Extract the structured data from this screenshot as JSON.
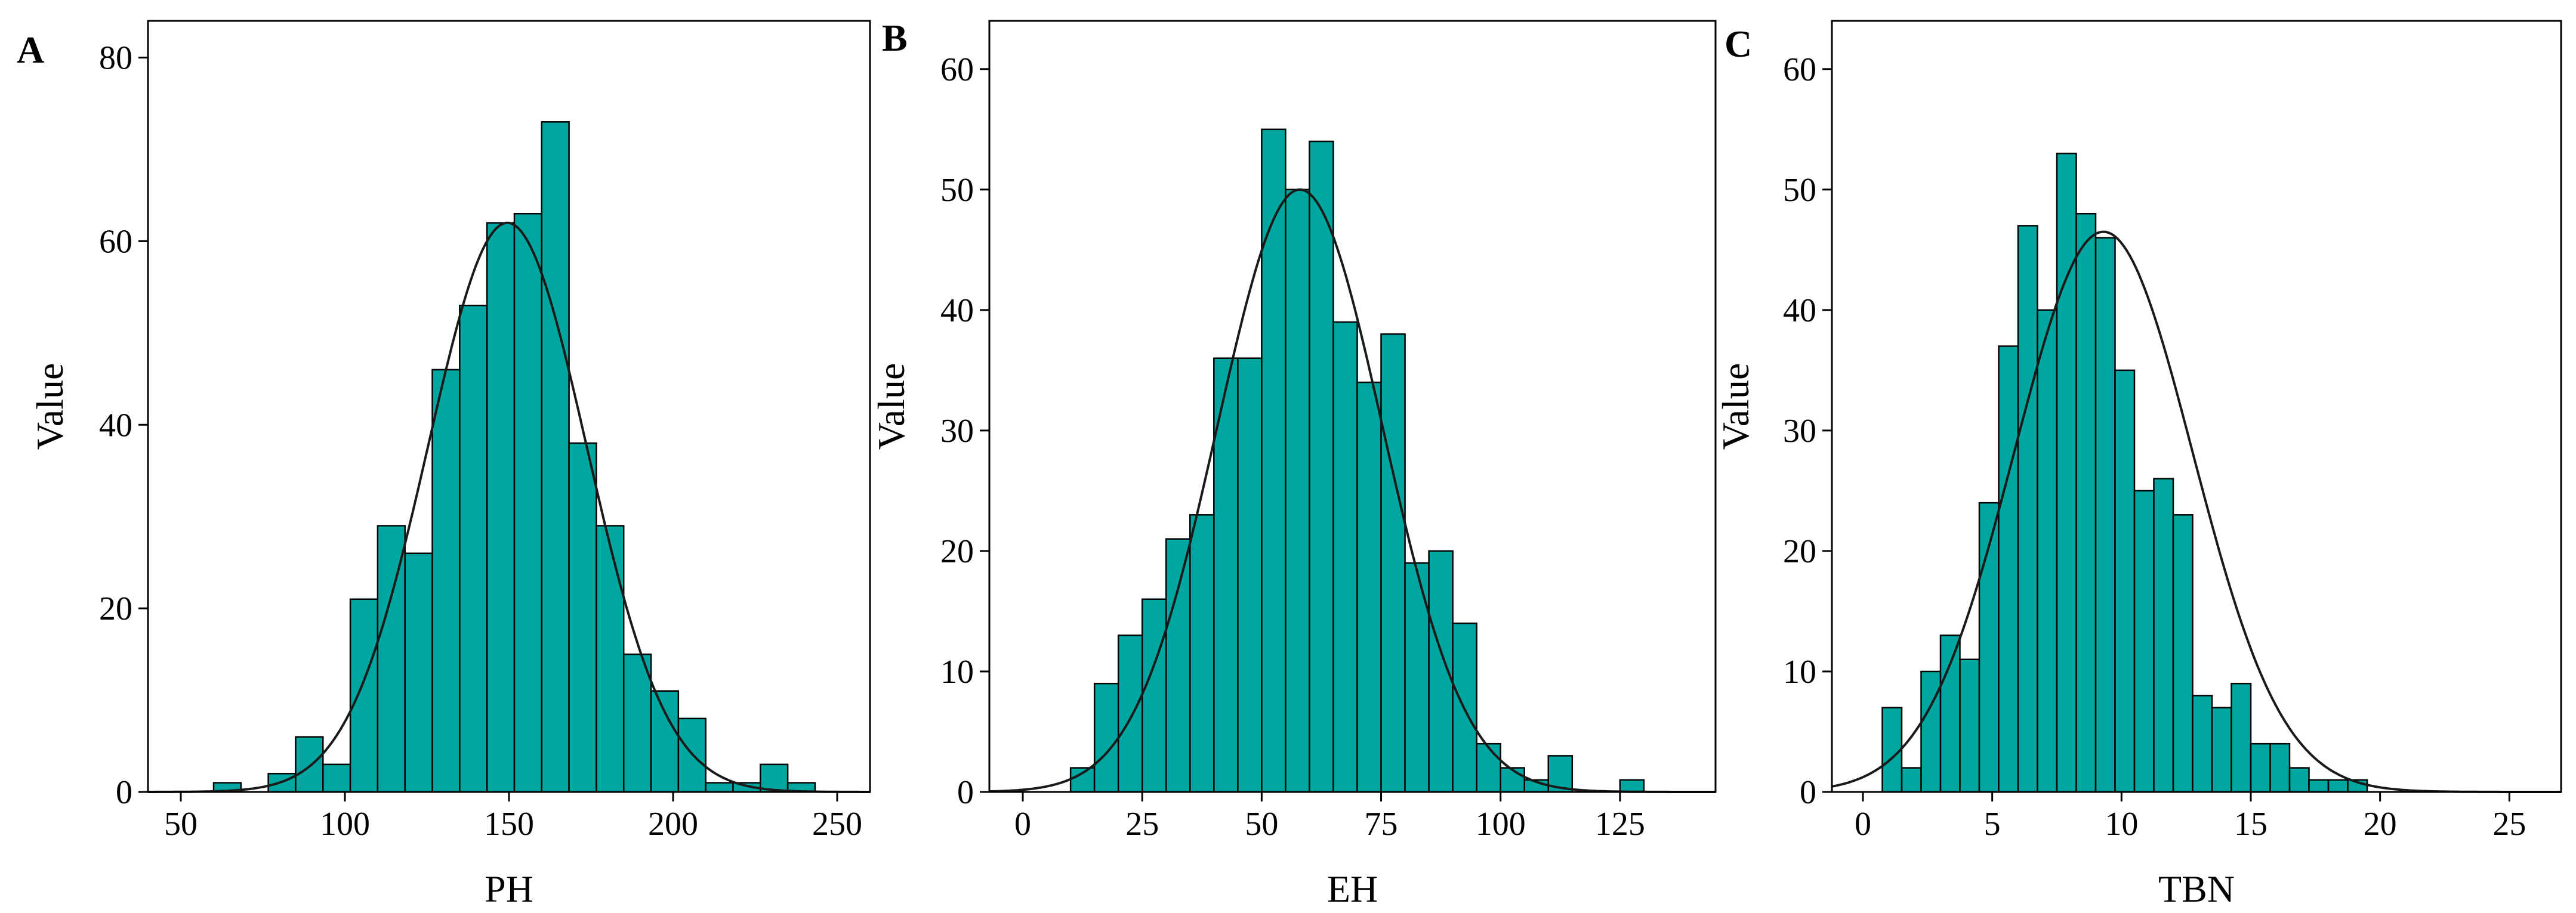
{
  "chart_data": [
    {
      "type": "bar",
      "panel_label": "A",
      "xlabel": "PH",
      "ylabel": "Value",
      "xlim": [
        40,
        260
      ],
      "ylim": [
        0,
        84
      ],
      "xticks": [
        50,
        100,
        150,
        200,
        250
      ],
      "yticks": [
        0,
        20,
        40,
        60,
        80
      ],
      "bin_start": 60,
      "bin_width": 8.33,
      "values": [
        1,
        0,
        2,
        6,
        3,
        21,
        29,
        26,
        46,
        53,
        62,
        63,
        73,
        38,
        29,
        15,
        11,
        8,
        1,
        1,
        3,
        1
      ],
      "normal_curve": {
        "mean": 149.5,
        "sd": 24.2,
        "peak": 62
      },
      "bar_color": "#00a6a0",
      "grid": false
    },
    {
      "type": "bar",
      "panel_label": "B",
      "xlabel": "EH",
      "ylabel": "Value",
      "xlim": [
        -7,
        145
      ],
      "ylim": [
        0,
        64
      ],
      "xticks": [
        0,
        25,
        50,
        75,
        100,
        125
      ],
      "yticks": [
        0,
        10,
        20,
        30,
        40,
        50,
        60
      ],
      "bin_start": 10,
      "bin_width": 5,
      "values": [
        2,
        9,
        13,
        16,
        21,
        23,
        36,
        36,
        55,
        50,
        54,
        39,
        34,
        38,
        19,
        20,
        14,
        4,
        2,
        1,
        3,
        0,
        0,
        1
      ],
      "normal_curve": {
        "mean": 58,
        "sd": 17.3,
        "peak": 50
      },
      "bar_color": "#00a6a0",
      "grid": false
    },
    {
      "type": "bar",
      "panel_label": "C",
      "xlabel": "TBN",
      "ylabel": "Value",
      "xlim": [
        -1.2,
        27
      ],
      "ylim": [
        0,
        64
      ],
      "xticks": [
        0,
        5,
        10,
        15,
        20,
        25
      ],
      "yticks": [
        0,
        10,
        20,
        30,
        40,
        50,
        60
      ],
      "bin_start": 0.75,
      "bin_width": 0.75,
      "values": [
        7,
        2,
        10,
        13,
        11,
        24,
        37,
        47,
        40,
        53,
        48,
        46,
        35,
        25,
        26,
        23,
        8,
        7,
        9,
        4,
        4,
        2,
        1,
        1,
        1
      ],
      "normal_curve": {
        "mean": 9.3,
        "sd": 3.45,
        "peak": 46.5
      },
      "bar_color": "#00a6a0",
      "grid": false
    }
  ]
}
